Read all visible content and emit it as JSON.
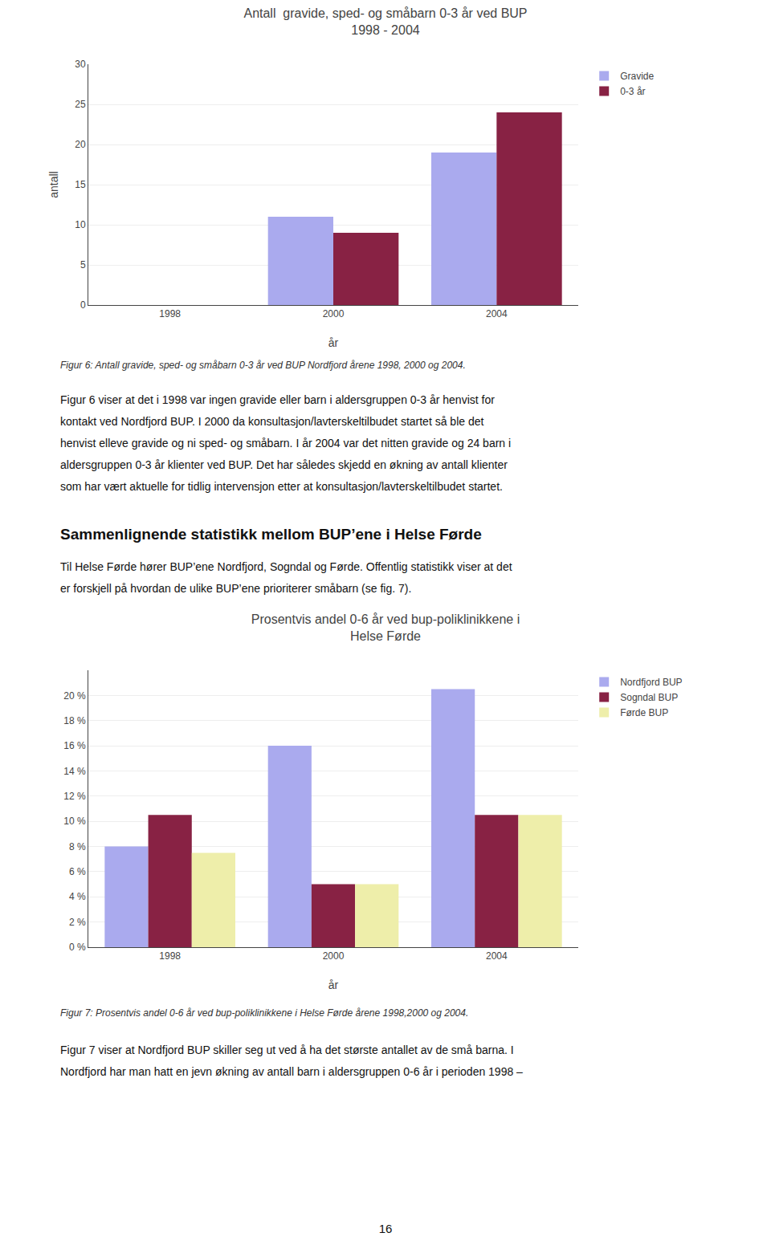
{
  "chart_data": [
    {
      "type": "bar",
      "title": "Antall  gravide, sped- og småbarn 0-3 år ved BUP\n1998 - 2004",
      "categories": [
        "1998",
        "2000",
        "2004"
      ],
      "series": [
        {
          "name": "Gravide",
          "color": "#AAAAEE",
          "values": [
            0,
            11,
            19
          ]
        },
        {
          "name": "0-3 år",
          "color": "#882244",
          "values": [
            0,
            9,
            24
          ]
        }
      ],
      "xlabel": "år",
      "ylabel": "antall",
      "ylim": [
        0,
        30
      ],
      "yticks": [
        0,
        5,
        10,
        15,
        20,
        25,
        30
      ],
      "grid": true,
      "legend": "upper right",
      "annotations": [
        "Figur 6: Antall gravide, sped- og småbarn 0-3 år ved BUP Nordfjord årene 1998, 2000 og 2004.",
        "Figur 6 viser at det i 1998 var ingen gravide eller barn i aldersgruppen 0-3 år henvist for",
        "kontakt ved Nordfjord BUP. I 2000 da konsultasjon/lavterskeltilbudet startet så ble det",
        "henvist elleve gravide og ni sped- og småbarn. I år 2004 var det nitten gravide og 24 barn i",
        "aldersgruppen 0-3 år klienter ved BUP. Det har således skjedd en økning av antall klienter",
        "som har vært aktuelle for tidlig intervensjon etter at konsultasjon/lavterskeltilbudet startet.",
        "Sammenlignende statistikk mellom BUP’ene i Helse Førde",
        "Til Helse Førde hører BUP’ene Nordfjord, Sogndal og Førde. Offentlig statistikk viser at det",
        "er forskjell på hvordan de ulike BUP’ene prioriterer småbarn (se fig. 7)."
      ]
    },
    {
      "type": "bar",
      "title": "Prosentvis andel 0-6 år ved bup-poliklinikkene i\nHelse Førde",
      "categories": [
        "1998",
        "2000",
        "2004"
      ],
      "series": [
        {
          "name": "Nordfjord BUP",
          "color": "#AAAAEE",
          "values": [
            8,
            16,
            20.5
          ]
        },
        {
          "name": "Sogndal BUP",
          "color": "#882244",
          "values": [
            10.5,
            5,
            10.5
          ]
        },
        {
          "name": "Førde BUP",
          "color": "#EEEEAA",
          "values": [
            7.5,
            5,
            10.5
          ]
        }
      ],
      "xlabel": "år",
      "ylim": [
        0,
        22
      ],
      "yticks": [
        {
          "value": 0,
          "label": "0 %"
        },
        {
          "value": 2,
          "label": "2 %"
        },
        {
          "value": 4,
          "label": "4 %"
        },
        {
          "value": 6,
          "label": "6 %"
        },
        {
          "value": 8,
          "label": "8 %"
        },
        {
          "value": 10,
          "label": "10 %"
        },
        {
          "value": 12,
          "label": "12 %"
        },
        {
          "value": 14,
          "label": "14 %"
        },
        {
          "value": 16,
          "label": "16 %"
        },
        {
          "value": 18,
          "label": "18 %"
        },
        {
          "value": 20,
          "label": "20 %"
        }
      ],
      "grid": true,
      "legend": "upper right",
      "annotations": [
        "Figur 7: Prosentvis andel 0-6 år ved bup-poliklinikkene i Helse Førde årene 1998,2000 og 2004.",
        "Figur 7 viser at Nordfjord BUP skiller seg ut ved å ha det største antallet av de små barna. I",
        "Nordfjord har man hatt en jevn økning av antall barn i aldersgruppen 0-6 år i perioden 1998 –",
        "16"
      ]
    }
  ]
}
